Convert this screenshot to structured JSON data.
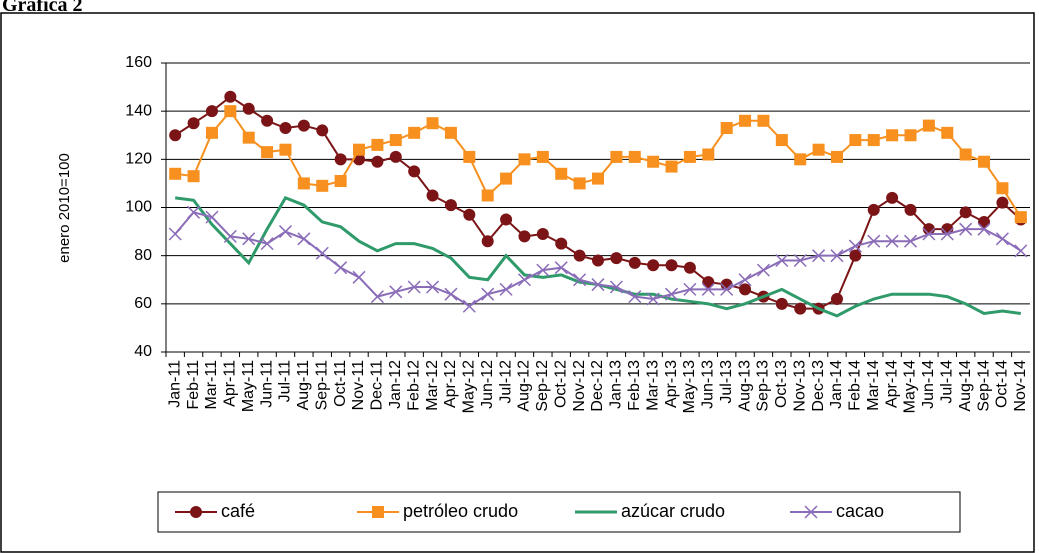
{
  "page_title": "Gráfica 2",
  "chart_data": {
    "type": "line",
    "y_label": "enero 2010=100",
    "categories": [
      "Jan-11",
      "Feb-11",
      "Mar-11",
      "Apr-11",
      "May-11",
      "Jun-11",
      "Jul-11",
      "Aug-11",
      "Sep-11",
      "Oct-11",
      "Nov-11",
      "Dec-11",
      "Jan-12",
      "Feb-12",
      "Mar-12",
      "Apr-12",
      "May-12",
      "Jun-12",
      "Jul-12",
      "Aug-12",
      "Sep-12",
      "Oct-12",
      "Nov-12",
      "Dec-12",
      "Jan-13",
      "Feb-13",
      "Mar-13",
      "Apr-13",
      "May-13",
      "Jun-13",
      "Jul-13",
      "Aug-13",
      "Sep-13",
      "Oct-13",
      "Nov-13",
      "Dec-13",
      "Jan-14",
      "Feb-14",
      "Mar-14",
      "Apr-14",
      "May-14",
      "Jun-14",
      "Jul-14",
      "Aug-14",
      "Sep-14",
      "Oct-14",
      "Nov-14"
    ],
    "ylim": [
      40,
      160
    ],
    "yticks": [
      40,
      60,
      80,
      100,
      120,
      140,
      160
    ],
    "grid": true,
    "legend": "bottom",
    "series": [
      {
        "name": "café",
        "color": "#7b1416",
        "marker": "circle",
        "values": [
          130,
          135,
          140,
          146,
          141,
          136,
          133,
          134,
          132,
          120,
          120,
          119,
          121,
          115,
          105,
          101,
          97,
          86,
          95,
          88,
          89,
          85,
          80,
          78,
          79,
          77,
          76,
          76,
          75,
          69,
          68,
          66,
          63,
          60,
          58,
          58,
          62,
          80,
          99,
          104,
          99,
          91,
          91,
          98,
          94,
          102,
          95
        ]
      },
      {
        "name": "petróleo crudo",
        "color": "#f7901e",
        "marker": "square",
        "values": [
          114,
          113,
          131,
          140,
          129,
          123,
          124,
          110,
          109,
          111,
          124,
          126,
          128,
          131,
          135,
          131,
          121,
          105,
          112,
          120,
          121,
          114,
          110,
          112,
          121,
          121,
          119,
          117,
          121,
          122,
          133,
          136,
          136,
          128,
          120,
          124,
          121,
          128,
          128,
          130,
          130,
          134,
          131,
          122,
          119,
          108,
          96
        ]
      },
      {
        "name": "azúcar crudo",
        "color": "#2f9a6a",
        "marker": "none",
        "values": [
          104,
          103,
          93,
          85,
          77,
          91,
          104,
          101,
          94,
          92,
          86,
          82,
          85,
          85,
          83,
          79,
          71,
          70,
          80,
          72,
          71,
          72,
          69,
          68,
          66,
          64,
          64,
          62,
          61,
          60,
          58,
          60,
          63,
          66,
          62,
          58,
          55,
          59,
          62,
          64,
          64,
          64,
          63,
          60,
          56,
          57,
          56
        ]
      },
      {
        "name": "cacao",
        "color": "#8a6cb8",
        "marker": "x",
        "values": [
          89,
          98,
          96,
          88,
          87,
          85,
          90,
          87,
          81,
          75,
          71,
          63,
          65,
          67,
          67,
          64,
          59,
          64,
          66,
          70,
          74,
          75,
          70,
          68,
          67,
          63,
          62,
          64,
          66,
          66,
          66,
          70,
          74,
          78,
          78,
          80,
          80,
          84,
          86,
          86,
          86,
          89,
          89,
          91,
          91,
          87,
          82
        ]
      }
    ]
  }
}
